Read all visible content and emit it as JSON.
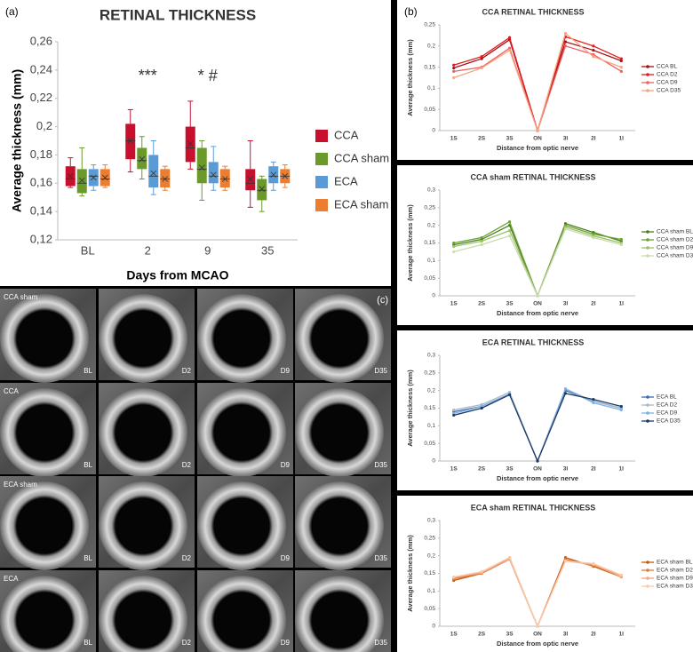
{
  "chart_data": [
    {
      "type": "box",
      "panel_label": "(a)",
      "title": "RETINAL THICKNESS",
      "x_label": "Days from MCAO",
      "y_label": "Average thickness (mm)",
      "categories": [
        "BL",
        "2",
        "9",
        "35"
      ],
      "ylim": [
        0.12,
        0.26
      ],
      "yticks": [
        {
          "value": 0.12,
          "label": "0,12"
        },
        {
          "value": 0.14,
          "label": "0,14"
        },
        {
          "value": 0.16,
          "label": "0,16"
        },
        {
          "value": 0.18,
          "label": "0,18"
        },
        {
          "value": 0.2,
          "label": "0,2"
        },
        {
          "value": 0.22,
          "label": "0,22"
        },
        {
          "value": 0.24,
          "label": "0,24"
        },
        {
          "value": 0.26,
          "label": "0,26"
        }
      ],
      "annotations": [
        "***",
        "* #"
      ],
      "series": [
        {
          "name": "CCA",
          "color": "#c8102e",
          "boxes": [
            {
              "min": 0.157,
              "q1": 0.158,
              "median": 0.163,
              "q3": 0.172,
              "max": 0.178,
              "mean": 0.165
            },
            {
              "min": 0.168,
              "q1": 0.177,
              "median": 0.19,
              "q3": 0.202,
              "max": 0.212,
              "mean": 0.19
            },
            {
              "min": 0.17,
              "q1": 0.175,
              "median": 0.185,
              "q3": 0.2,
              "max": 0.218,
              "mean": 0.188
            },
            {
              "min": 0.143,
              "q1": 0.155,
              "median": 0.16,
              "q3": 0.17,
              "max": 0.19,
              "mean": 0.163
            }
          ]
        },
        {
          "name": "CCA sham",
          "color": "#6a9a2a",
          "boxes": [
            {
              "min": 0.151,
              "q1": 0.153,
              "median": 0.16,
              "q3": 0.17,
              "max": 0.185,
              "mean": 0.162
            },
            {
              "min": 0.163,
              "q1": 0.17,
              "median": 0.176,
              "q3": 0.185,
              "max": 0.193,
              "mean": 0.177
            },
            {
              "min": 0.148,
              "q1": 0.16,
              "median": 0.17,
              "q3": 0.185,
              "max": 0.19,
              "mean": 0.171
            },
            {
              "min": 0.14,
              "q1": 0.148,
              "median": 0.155,
              "q3": 0.163,
              "max": 0.165,
              "mean": 0.156
            }
          ]
        },
        {
          "name": "ECA",
          "color": "#5b9bd5",
          "boxes": [
            {
              "min": 0.155,
              "q1": 0.158,
              "median": 0.165,
              "q3": 0.17,
              "max": 0.173,
              "mean": 0.164
            },
            {
              "min": 0.152,
              "q1": 0.157,
              "median": 0.165,
              "q3": 0.18,
              "max": 0.19,
              "mean": 0.167
            },
            {
              "min": 0.155,
              "q1": 0.16,
              "median": 0.165,
              "q3": 0.175,
              "max": 0.186,
              "mean": 0.166
            },
            {
              "min": 0.155,
              "q1": 0.16,
              "median": 0.165,
              "q3": 0.172,
              "max": 0.175,
              "mean": 0.166
            }
          ]
        },
        {
          "name": "ECA sham",
          "color": "#ed7d31",
          "boxes": [
            {
              "min": 0.157,
              "q1": 0.158,
              "median": 0.163,
              "q3": 0.17,
              "max": 0.173,
              "mean": 0.164
            },
            {
              "min": 0.155,
              "q1": 0.157,
              "median": 0.163,
              "q3": 0.17,
              "max": 0.172,
              "mean": 0.163
            },
            {
              "min": 0.155,
              "q1": 0.157,
              "median": 0.163,
              "q3": 0.17,
              "max": 0.172,
              "mean": 0.163
            },
            {
              "min": 0.157,
              "q1": 0.16,
              "median": 0.165,
              "q3": 0.17,
              "max": 0.173,
              "mean": 0.165
            }
          ]
        }
      ]
    },
    {
      "type": "line",
      "panel_label": "(b)",
      "title": "CCA RETINAL THICKNESS",
      "x_label": "Distance from optic nerve",
      "y_label": "Average thickness (mm)",
      "categories": [
        "1S",
        "2S",
        "3S",
        "ON",
        "3I",
        "2I",
        "1I"
      ],
      "ylim": [
        0,
        0.25
      ],
      "yticks": [
        0,
        {
          "value": 0.05,
          "label": "0,05"
        },
        {
          "value": 0.1,
          "label": "0,1"
        },
        {
          "value": 0.15,
          "label": "0,15"
        },
        {
          "value": 0.2,
          "label": "0,2"
        },
        {
          "value": 0.25,
          "label": "0,25"
        }
      ],
      "series": [
        {
          "name": "CCA BL",
          "color": "#a50f15",
          "values": [
            0.148,
            0.17,
            0.215,
            0,
            0.21,
            0.19,
            0.165
          ]
        },
        {
          "name": "CCA D2",
          "color": "#e31a1c",
          "values": [
            0.155,
            0.175,
            0.22,
            0,
            0.222,
            0.2,
            0.17
          ]
        },
        {
          "name": "CCA D9",
          "color": "#f06060",
          "values": [
            0.14,
            0.15,
            0.195,
            0,
            0.2,
            0.18,
            0.14
          ]
        },
        {
          "name": "CCA D35",
          "color": "#f4a582",
          "values": [
            0.125,
            0.148,
            0.19,
            0,
            0.23,
            0.175,
            0.15
          ]
        }
      ]
    },
    {
      "type": "line",
      "title": "CCA sham RETINAL THICKNESS",
      "x_label": "Distance from optic nerve",
      "y_label": "Average thickness (mm)",
      "categories": [
        "1S",
        "2S",
        "3S",
        "ON",
        "3I",
        "2I",
        "1I"
      ],
      "ylim": [
        0,
        0.3
      ],
      "yticks": [
        0,
        {
          "value": 0.05,
          "label": "0,05"
        },
        {
          "value": 0.1,
          "label": "0,1"
        },
        {
          "value": 0.15,
          "label": "0,15"
        },
        {
          "value": 0.2,
          "label": "0,2"
        },
        {
          "value": 0.25,
          "label": "0,25"
        },
        {
          "value": 0.3,
          "label": "0,3"
        }
      ],
      "series": [
        {
          "name": "CCA sham BL",
          "color": "#4a7c1e",
          "values": [
            0.145,
            0.16,
            0.2,
            0,
            0.205,
            0.18,
            0.155
          ]
        },
        {
          "name": "CCA sham D2",
          "color": "#6aa132",
          "values": [
            0.15,
            0.165,
            0.21,
            0,
            0.2,
            0.175,
            0.16
          ]
        },
        {
          "name": "CCA sham D9",
          "color": "#9bc06a",
          "values": [
            0.14,
            0.155,
            0.185,
            0,
            0.195,
            0.17,
            0.15
          ]
        },
        {
          "name": "CCA sham D35",
          "color": "#c9dcae",
          "values": [
            0.125,
            0.145,
            0.17,
            0,
            0.19,
            0.165,
            0.145
          ]
        }
      ]
    },
    {
      "type": "line",
      "title": "ECA  RETINAL THICKNESS",
      "x_label": "Distance from optic nerve",
      "y_label": "Average thickness (mm)",
      "categories": [
        "1S",
        "2S",
        "3S",
        "ON",
        "3I",
        "2I",
        "1I"
      ],
      "ylim": [
        0,
        0.3
      ],
      "yticks": [
        0,
        {
          "value": 0.05,
          "label": "0,05"
        },
        {
          "value": 0.1,
          "label": "0,1"
        },
        {
          "value": 0.15,
          "label": "0,15"
        },
        {
          "value": 0.2,
          "label": "0,2"
        },
        {
          "value": 0.25,
          "label": "0,25"
        },
        {
          "value": 0.3,
          "label": "0,3"
        }
      ],
      "series": [
        {
          "name": "ECA BL",
          "color": "#3a6fb0",
          "values": [
            0.14,
            0.155,
            0.19,
            0,
            0.2,
            0.17,
            0.15
          ]
        },
        {
          "name": "ECA D2",
          "color": "#a9b8c8",
          "values": [
            0.145,
            0.16,
            0.195,
            0,
            0.205,
            0.17,
            0.15
          ]
        },
        {
          "name": "ECA D9",
          "color": "#7fb2e0",
          "values": [
            0.135,
            0.155,
            0.19,
            0,
            0.205,
            0.165,
            0.145
          ]
        },
        {
          "name": "ECA D35",
          "color": "#1f3864",
          "values": [
            0.13,
            0.15,
            0.188,
            0,
            0.192,
            0.175,
            0.155
          ]
        }
      ]
    },
    {
      "type": "line",
      "title": "ECA sham RETINAL THICKNESS",
      "x_label": "Distance from optic nerve",
      "y_label": "Average thickness (mm)",
      "categories": [
        "1S",
        "2S",
        "3S",
        "ON",
        "3I",
        "2I",
        "1I"
      ],
      "ylim": [
        0,
        0.3
      ],
      "yticks": [
        0,
        {
          "value": 0.05,
          "label": "0,05"
        },
        {
          "value": 0.1,
          "label": "0,1"
        },
        {
          "value": 0.15,
          "label": "0,15"
        },
        {
          "value": 0.2,
          "label": "0,2"
        },
        {
          "value": 0.25,
          "label": "0,25"
        },
        {
          "value": 0.3,
          "label": "0,3"
        }
      ],
      "series": [
        {
          "name": "ECA sham BL",
          "color": "#c55a11",
          "values": [
            0.13,
            0.15,
            0.19,
            0,
            0.195,
            0.17,
            0.14
          ]
        },
        {
          "name": "ECA sham D2",
          "color": "#e07b39",
          "values": [
            0.135,
            0.15,
            0.195,
            0,
            0.19,
            0.172,
            0.145
          ]
        },
        {
          "name": "ECA sham D9",
          "color": "#f4a582",
          "values": [
            0.138,
            0.152,
            0.19,
            0,
            0.185,
            0.175,
            0.14
          ]
        },
        {
          "name": "ECA sham D35",
          "color": "#f8cbad",
          "values": [
            0.14,
            0.155,
            0.195,
            0,
            0.185,
            0.178,
            0.145
          ]
        }
      ]
    }
  ],
  "image_grid": {
    "panel_label": "(c)",
    "rows": [
      "CCA sham",
      "CCA",
      "ECA sham",
      "ECA"
    ],
    "columns": [
      "BL",
      "D2",
      "D9",
      "D35"
    ]
  }
}
